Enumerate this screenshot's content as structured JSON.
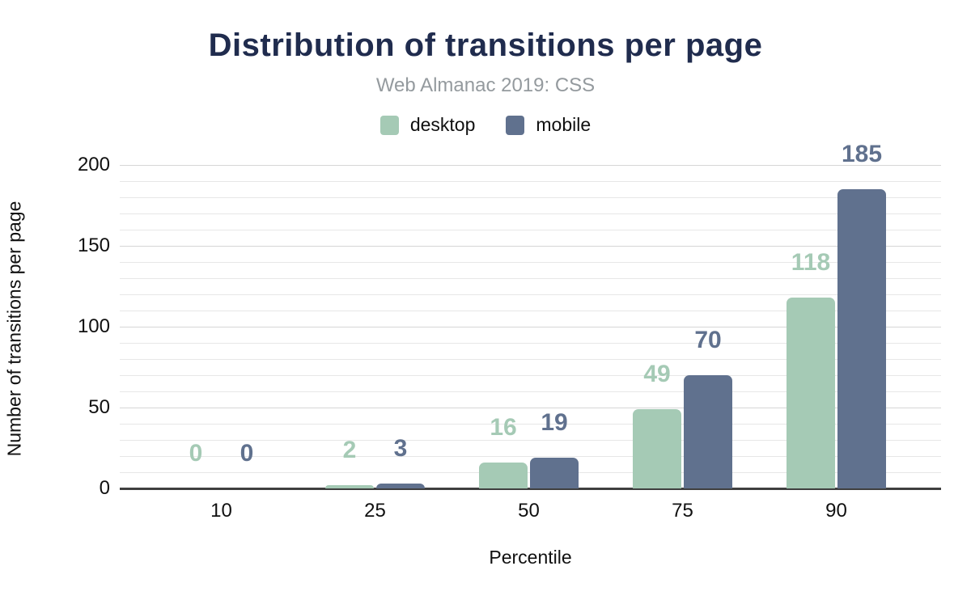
{
  "header": {
    "title": "Distribution of transitions per page",
    "subtitle": "Web Almanac 2019: CSS"
  },
  "chart_data": {
    "type": "bar",
    "title": "Distribution of transitions per page",
    "subtitle": "Web Almanac 2019: CSS",
    "categories": [
      "10",
      "25",
      "50",
      "75",
      "90"
    ],
    "series": [
      {
        "name": "desktop",
        "color": "#a5cab5",
        "values": [
          0,
          2,
          16,
          49,
          118
        ]
      },
      {
        "name": "mobile",
        "color": "#60718e",
        "values": [
          0,
          3,
          19,
          70,
          185
        ]
      }
    ],
    "xlabel": "Percentile",
    "ylabel": "Number of transitions per page",
    "ylim": [
      0,
      200
    ],
    "y_ticks": [
      0,
      50,
      100,
      150,
      200
    ],
    "grid_interval": 10,
    "grid": true,
    "legend_position": "top",
    "colors": {
      "title": "#202c4e",
      "subtitle": "#949a9e",
      "axis_text": "#101010",
      "gridline_minor": "#e7e7e7",
      "gridline_major": "#d6d6d6",
      "baseline": "#3f3f3f"
    }
  }
}
